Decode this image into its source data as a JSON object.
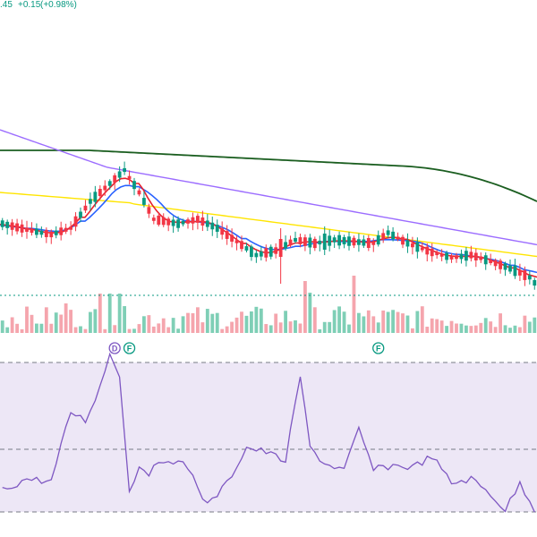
{
  "header": {
    "price_fragment": ".45",
    "change": "+0.15",
    "change_pct": "(+0.98%)"
  },
  "colors": {
    "up": "#089981",
    "down": "#f23645",
    "up_volume": "#7fcfb6",
    "down_volume": "#f5a5ad",
    "ma_fast": "#e8222e",
    "ma_mid": "#2962ff",
    "ma_slow": "#ffe500",
    "ma_slower": "#9c6dff",
    "ma_long": "#1b5e20",
    "rsi_line": "#7e57c2",
    "rsi_band": "#ede7f6",
    "last_price_line": "#089981"
  },
  "chart_data": {
    "type": "candlestick",
    "candle_count": 110,
    "price_ylim": [
      0,
      100
    ],
    "volume_ylim": [
      0,
      100
    ],
    "rsi_ylim": [
      0,
      100
    ],
    "rsi_levels": [
      70,
      50,
      30
    ],
    "markers": [
      {
        "label": "D",
        "index": 23,
        "color": "#7e57c2"
      },
      {
        "label": "F",
        "index": 26,
        "color": "#089981"
      },
      {
        "label": "F",
        "index": 77,
        "color": "#089981"
      }
    ],
    "last_price_level": 18
  }
}
